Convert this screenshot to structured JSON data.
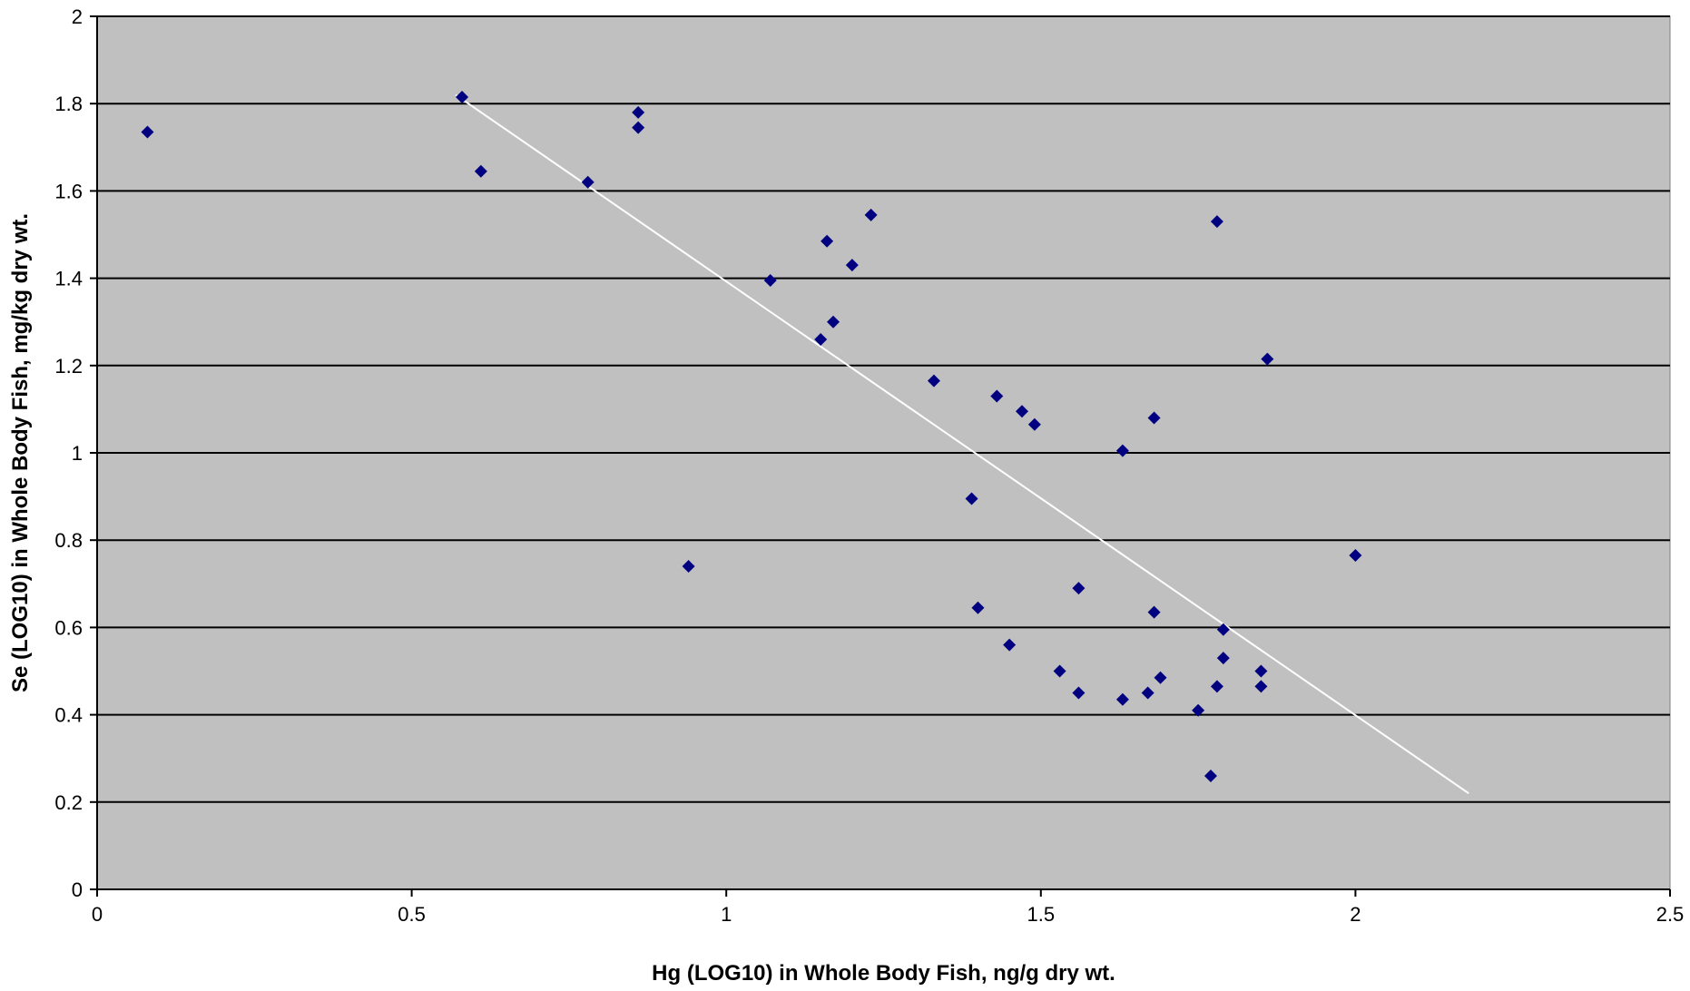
{
  "chart_data": {
    "type": "scatter",
    "title": "",
    "xlabel": "Hg (LOG10) in Whole Body Fish, ng/g dry wt.",
    "ylabel": "Se (LOG10) in Whole Body Fish, mg/kg dry wt.",
    "xlim": [
      0,
      2.5
    ],
    "ylim": [
      0,
      2
    ],
    "xticks": [
      0,
      0.5,
      1,
      1.5,
      2,
      2.5
    ],
    "xtick_labels": [
      "0",
      "0.5",
      "1",
      "1.5",
      "2",
      "2.5"
    ],
    "yticks": [
      0,
      0.2,
      0.4,
      0.6,
      0.8,
      1,
      1.2,
      1.4,
      1.6,
      1.8,
      2
    ],
    "ytick_labels": [
      "0",
      "0.2",
      "0.4",
      "0.6",
      "0.8",
      "1",
      "1.2",
      "1.4",
      "1.6",
      "1.8",
      "2"
    ],
    "grid": "horizontal",
    "legend": "none",
    "plot_background": "#c0c0c0",
    "marker_color": "#000080",
    "trendline_color": "#ffffff",
    "points": [
      {
        "x": 0.08,
        "y": 1.735
      },
      {
        "x": 0.58,
        "y": 1.815
      },
      {
        "x": 0.61,
        "y": 1.645
      },
      {
        "x": 0.78,
        "y": 1.62
      },
      {
        "x": 0.86,
        "y": 1.78
      },
      {
        "x": 0.86,
        "y": 1.745
      },
      {
        "x": 0.94,
        "y": 0.74
      },
      {
        "x": 1.07,
        "y": 1.395
      },
      {
        "x": 1.15,
        "y": 1.26
      },
      {
        "x": 1.16,
        "y": 1.485
      },
      {
        "x": 1.17,
        "y": 1.3
      },
      {
        "x": 1.2,
        "y": 1.43
      },
      {
        "x": 1.23,
        "y": 1.545
      },
      {
        "x": 1.33,
        "y": 1.165
      },
      {
        "x": 1.39,
        "y": 0.895
      },
      {
        "x": 1.4,
        "y": 0.645
      },
      {
        "x": 1.43,
        "y": 1.13
      },
      {
        "x": 1.45,
        "y": 0.56
      },
      {
        "x": 1.47,
        "y": 1.095
      },
      {
        "x": 1.49,
        "y": 1.065
      },
      {
        "x": 1.53,
        "y": 0.5
      },
      {
        "x": 1.56,
        "y": 0.69
      },
      {
        "x": 1.56,
        "y": 0.45
      },
      {
        "x": 1.63,
        "y": 1.005
      },
      {
        "x": 1.63,
        "y": 0.435
      },
      {
        "x": 1.67,
        "y": 0.45
      },
      {
        "x": 1.68,
        "y": 1.08
      },
      {
        "x": 1.68,
        "y": 0.635
      },
      {
        "x": 1.69,
        "y": 0.485
      },
      {
        "x": 1.75,
        "y": 0.41
      },
      {
        "x": 1.77,
        "y": 0.26
      },
      {
        "x": 1.78,
        "y": 0.465
      },
      {
        "x": 1.78,
        "y": 1.53
      },
      {
        "x": 1.79,
        "y": 0.595
      },
      {
        "x": 1.79,
        "y": 0.53
      },
      {
        "x": 1.85,
        "y": 0.5
      },
      {
        "x": 1.85,
        "y": 0.465
      },
      {
        "x": 1.86,
        "y": 1.215
      },
      {
        "x": 2.0,
        "y": 0.765
      }
    ],
    "trendline": {
      "x": [
        0.57,
        2.18
      ],
      "y": [
        1.82,
        0.22
      ]
    }
  }
}
